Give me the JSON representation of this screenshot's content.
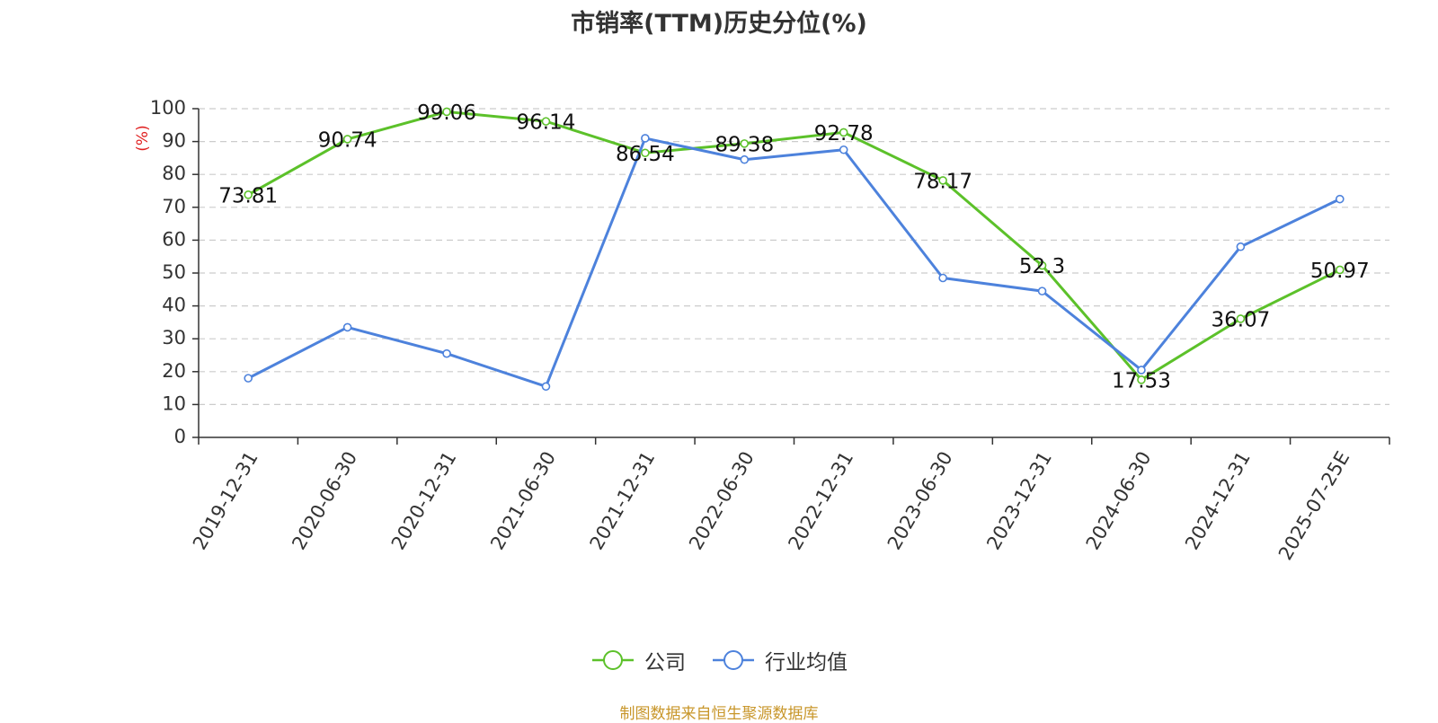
{
  "footer": {
    "source": "制图数据来自恒生聚源数据库"
  },
  "chart_data": {
    "type": "line",
    "title": "市销率(TTM)历史分位(%)",
    "ylabel": "(%)",
    "xlabel": "",
    "ylim": [
      0,
      100
    ],
    "yticks": [
      0,
      10,
      20,
      30,
      40,
      50,
      60,
      70,
      80,
      90,
      100
    ],
    "grid": true,
    "legend_position": "bottom",
    "categories": [
      "2019-12-31",
      "2020-06-30",
      "2020-12-31",
      "2021-06-30",
      "2021-12-31",
      "2022-06-30",
      "2022-12-31",
      "2023-06-30",
      "2023-12-31",
      "2024-06-30",
      "2024-12-31",
      "2025-07-25E"
    ],
    "series": [
      {
        "name": "公司",
        "color": "#5cc12a",
        "show_labels": true,
        "values": [
          73.81,
          90.74,
          99.06,
          96.14,
          86.54,
          89.38,
          92.78,
          78.17,
          52.3,
          17.53,
          36.07,
          50.97
        ]
      },
      {
        "name": "行业均值",
        "color": "#4d82dc",
        "show_labels": false,
        "values": [
          18,
          33.5,
          25.5,
          15.5,
          91,
          84.5,
          87.5,
          48.5,
          44.5,
          20.5,
          58,
          72.5
        ]
      }
    ]
  }
}
